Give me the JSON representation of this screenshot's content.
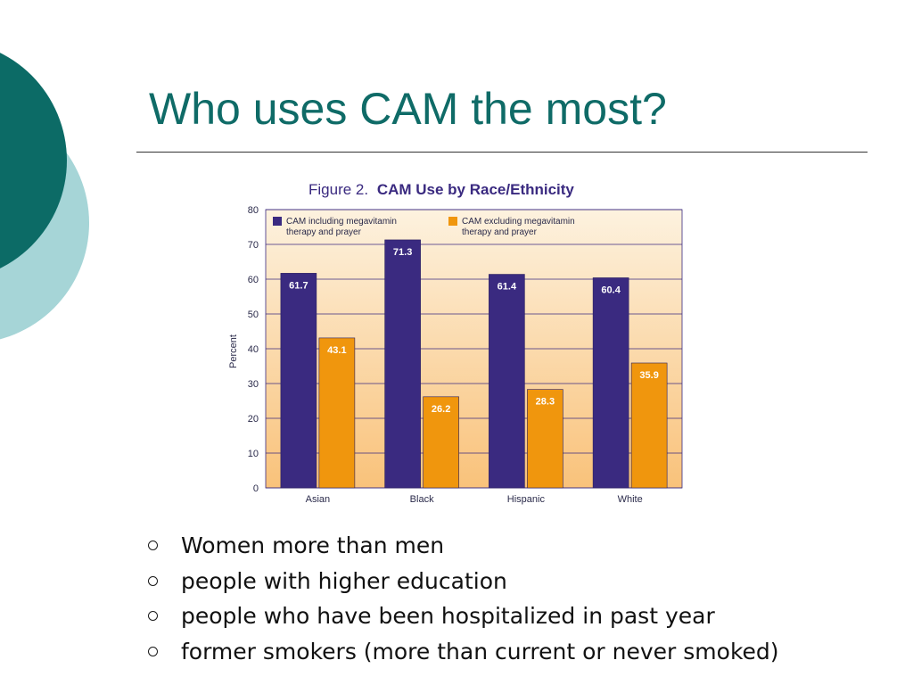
{
  "slide": {
    "title": "Who uses CAM the most?",
    "accent_colors": {
      "title_text": "#0f6b67",
      "decor_dark": "#0c6b66",
      "decor_light": "#a6d5d7"
    },
    "bullet_marker_icon": "hollow-circle-icon",
    "bullets": [
      "Women more than men",
      "people with higher education",
      "people who have been hospitalized in past year",
      "former smokers (more than current or never smoked)"
    ]
  },
  "chart_data": {
    "type": "bar",
    "title_prefix": "Figure 2.",
    "title": "CAM Use by Race/Ethnicity",
    "xlabel": "",
    "ylabel": "Percent",
    "ylim": [
      0,
      80
    ],
    "yticks": [
      "0",
      "10",
      "20",
      "30",
      "40",
      "50",
      "60",
      "70",
      "80"
    ],
    "grid": true,
    "legend_position": "top",
    "categories": [
      "Asian",
      "Black",
      "Hispanic",
      "White"
    ],
    "series": [
      {
        "name": "CAM including megavitamin therapy and prayer",
        "name_lines": [
          "CAM including megavitamin",
          "therapy and prayer"
        ],
        "color": "#3a2a80",
        "values": [
          61.7,
          71.3,
          61.4,
          60.4
        ],
        "labels": [
          "61.7",
          "71.3",
          "61.4",
          "60.4"
        ]
      },
      {
        "name": "CAM excluding megavitamin therapy and prayer",
        "name_lines": [
          "CAM excluding megavitamin",
          "therapy and prayer"
        ],
        "color": "#f0960d",
        "values": [
          43.1,
          26.2,
          28.3,
          35.9
        ],
        "labels": [
          "43.1",
          "26.2",
          "28.3",
          "35.9"
        ]
      }
    ],
    "colors": {
      "background_top": "#fdf2df",
      "background_bottom": "#f9c27a",
      "gridline": "#3a2a80",
      "title_text": "#3a2a80"
    }
  }
}
